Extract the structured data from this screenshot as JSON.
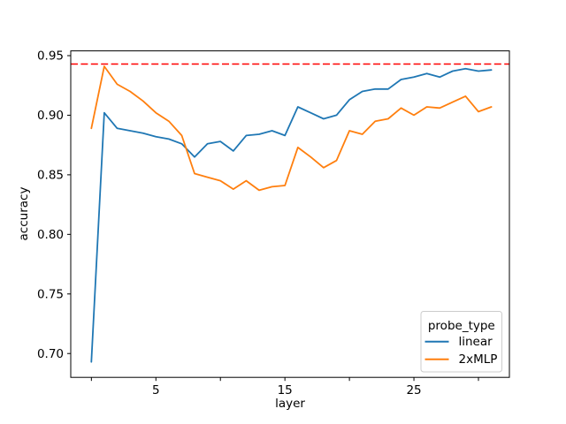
{
  "chart_data": {
    "type": "line",
    "title": "",
    "xlabel": "layer",
    "ylabel": "accuracy",
    "x": [
      0,
      1,
      2,
      3,
      4,
      5,
      6,
      7,
      8,
      9,
      10,
      11,
      12,
      13,
      14,
      15,
      16,
      17,
      18,
      19,
      20,
      21,
      22,
      23,
      24,
      25,
      26,
      27,
      28,
      29,
      30,
      31
    ],
    "series": [
      {
        "name": "linear",
        "color": "#1f77b4",
        "values": [
          0.693,
          0.902,
          0.889,
          0.887,
          0.885,
          0.882,
          0.88,
          0.876,
          0.865,
          0.876,
          0.878,
          0.87,
          0.883,
          0.884,
          0.887,
          0.883,
          0.907,
          0.902,
          0.897,
          0.9,
          0.913,
          0.92,
          0.922,
          0.922,
          0.93,
          0.932,
          0.935,
          0.932,
          0.937,
          0.939,
          0.937,
          0.938
        ]
      },
      {
        "name": "2xMLP",
        "color": "#ff7f0e",
        "values": [
          0.889,
          0.941,
          0.926,
          0.92,
          0.912,
          0.902,
          0.895,
          0.883,
          0.851,
          0.848,
          0.845,
          0.838,
          0.845,
          0.837,
          0.84,
          0.841,
          0.873,
          0.865,
          0.856,
          0.862,
          0.887,
          0.884,
          0.895,
          0.897,
          0.906,
          0.9,
          0.907,
          0.906,
          0.911,
          0.916,
          0.903,
          0.907
        ]
      }
    ],
    "reference_line": {
      "value": 0.943,
      "color": "#ff0000",
      "style": "dashed"
    },
    "xlim": [
      -1.6,
      32.4
    ],
    "ylim": [
      0.68,
      0.954
    ],
    "xticks": {
      "positions": [
        0,
        5,
        10,
        15,
        20,
        25,
        30
      ],
      "labels": [
        "",
        "5",
        "",
        "15",
        "",
        "25",
        ""
      ]
    },
    "yticks": {
      "positions": [
        0.7,
        0.75,
        0.8,
        0.85,
        0.9,
        0.95
      ],
      "labels": [
        "0.70",
        "0.75",
        "0.80",
        "0.85",
        "0.90",
        "0.95"
      ]
    },
    "legend": {
      "title": "probe_type",
      "position": "lower right",
      "entries": [
        {
          "label": "linear",
          "color": "#1f77b4"
        },
        {
          "label": "2xMLP",
          "color": "#ff7f0e"
        }
      ]
    },
    "grid": false,
    "background": "#ffffff",
    "spine_color": "#000000"
  }
}
